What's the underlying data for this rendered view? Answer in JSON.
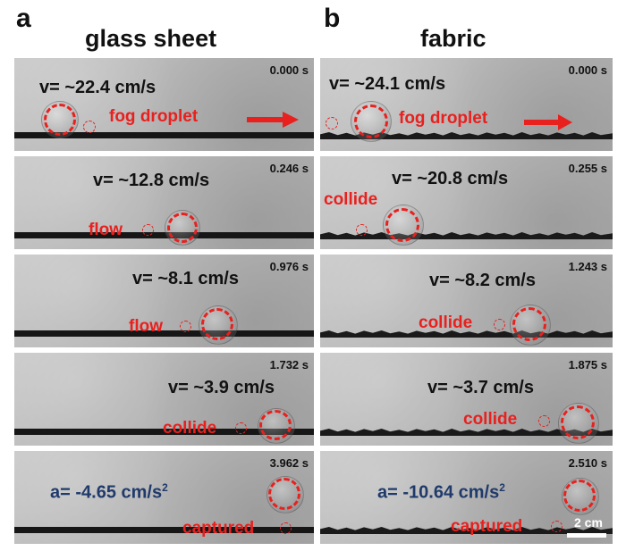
{
  "panels": {
    "a": {
      "letter": "a",
      "title": "glass sheet",
      "frames": [
        {
          "time": "0.000 s",
          "velocity": "v= ~22.4 cm/s",
          "label": "fog droplet"
        },
        {
          "time": "0.246 s",
          "velocity": "v= ~12.8 cm/s",
          "label": "flow"
        },
        {
          "time": "0.976 s",
          "velocity": "v= ~8.1 cm/s",
          "label": "flow"
        },
        {
          "time": "1.732 s",
          "velocity": "v= ~3.9 cm/s",
          "label": "collide"
        },
        {
          "time": "3.962 s",
          "acceleration": "a= -4.65 cm/s",
          "acc_exp": "2",
          "label": "captured"
        }
      ]
    },
    "b": {
      "letter": "b",
      "title": "fabric",
      "frames": [
        {
          "time": "0.000 s",
          "velocity": "v= ~24.1 cm/s",
          "label": "fog droplet"
        },
        {
          "time": "0.255 s",
          "velocity": "v= ~20.8 cm/s",
          "label": "collide"
        },
        {
          "time": "1.243 s",
          "velocity": "v= ~8.2 cm/s",
          "label": "collide"
        },
        {
          "time": "1.875 s",
          "velocity": "v= ~3.7 cm/s",
          "label": "collide"
        },
        {
          "time": "2.510 s",
          "acceleration": "a= -10.64 cm/s",
          "acc_exp": "2",
          "label": "captured"
        }
      ],
      "scale_bar": "2 cm"
    }
  },
  "colors": {
    "highlight": "#e8201e",
    "acceleration_text": "#1f3a6b"
  }
}
